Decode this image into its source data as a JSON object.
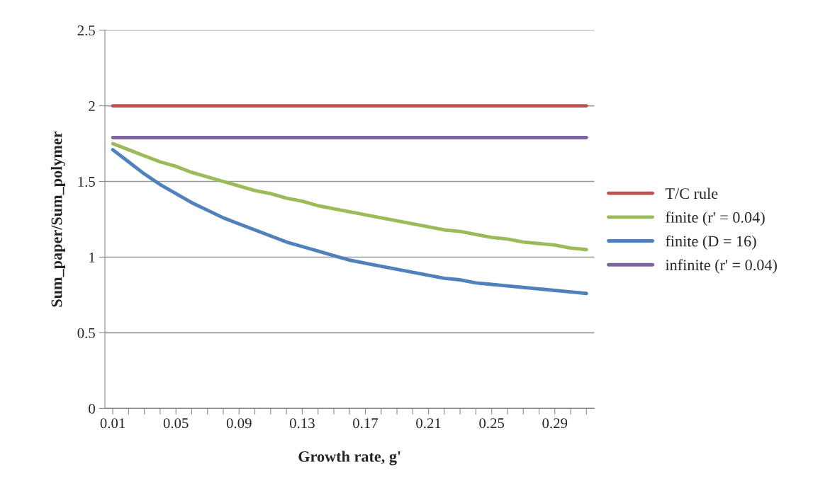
{
  "chart_data": {
    "type": "line",
    "xlabel": "Growth rate, g'",
    "ylabel": "Sum_paper/Sum_polymer",
    "categories": [
      "0.01",
      null,
      null,
      null,
      "0.05",
      null,
      null,
      null,
      "0.09",
      null,
      null,
      null,
      "0.13",
      null,
      null,
      null,
      "0.17",
      null,
      null,
      null,
      "0.21",
      null,
      null,
      null,
      "0.25",
      null,
      null,
      null,
      "0.29",
      null,
      null
    ],
    "series": [
      {
        "name": "T/C rule",
        "color": "#c0504d",
        "values": [
          2,
          2,
          2,
          2,
          2,
          2,
          2,
          2,
          2,
          2,
          2,
          2,
          2,
          2,
          2,
          2,
          2,
          2,
          2,
          2,
          2,
          2,
          2,
          2,
          2,
          2,
          2,
          2,
          2,
          2,
          2
        ]
      },
      {
        "name": "finite (r' = 0.04)",
        "color": "#9bbb59",
        "values": [
          1.75,
          1.71,
          1.67,
          1.63,
          1.6,
          1.56,
          1.53,
          1.5,
          1.47,
          1.44,
          1.42,
          1.39,
          1.37,
          1.34,
          1.32,
          1.3,
          1.28,
          1.26,
          1.24,
          1.22,
          1.2,
          1.18,
          1.17,
          1.15,
          1.13,
          1.12,
          1.1,
          1.09,
          1.08,
          1.06,
          1.05
        ]
      },
      {
        "name": "finite (D = 16)",
        "color": "#4f81bd",
        "values": [
          1.71,
          1.63,
          1.55,
          1.48,
          1.42,
          1.36,
          1.31,
          1.26,
          1.22,
          1.18,
          1.14,
          1.1,
          1.07,
          1.04,
          1.01,
          0.98,
          0.96,
          0.94,
          0.92,
          0.9,
          0.88,
          0.86,
          0.85,
          0.83,
          0.82,
          0.81,
          0.8,
          0.79,
          0.78,
          0.77,
          0.76
        ]
      },
      {
        "name": "infinite (r' = 0.04)",
        "color": "#8064a2",
        "values": [
          1.79,
          1.79,
          1.79,
          1.79,
          1.79,
          1.79,
          1.79,
          1.79,
          1.79,
          1.79,
          1.79,
          1.79,
          1.79,
          1.79,
          1.79,
          1.79,
          1.79,
          1.79,
          1.79,
          1.79,
          1.79,
          1.79,
          1.79,
          1.79,
          1.79,
          1.79,
          1.79,
          1.79,
          1.79,
          1.79,
          1.79
        ]
      }
    ],
    "ylim": [
      0,
      2.5
    ],
    "yticks": [
      0,
      0.5,
      1,
      1.5,
      2,
      2.5
    ],
    "grid": "y",
    "legend": "right",
    "marker": "none",
    "line_style": "solid"
  }
}
